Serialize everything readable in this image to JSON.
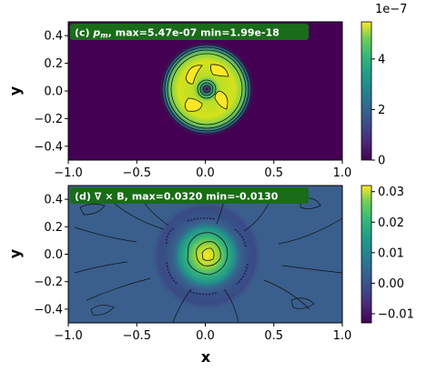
{
  "chart_data": [
    {
      "type": "heatmap",
      "title_prefix": "(c) ",
      "title_symbol": "p",
      "title_symbol_sub": "m",
      "title_rest": ", max=5.47e-07 min=1.99e-18",
      "xlabel": "",
      "ylabel": "y",
      "xlim": [
        -1.0,
        1.0
      ],
      "ylim": [
        -0.5,
        0.5
      ],
      "xticks": [
        "−1.0",
        "−0.5",
        "0.0",
        "0.5",
        "1.0"
      ],
      "xtick_values": [
        -1.0,
        -0.5,
        0.0,
        0.5,
        1.0
      ],
      "yticks": [
        "−0.4",
        "−0.2",
        "0.0",
        "0.2",
        "0.4"
      ],
      "ytick_values": [
        -0.4,
        -0.2,
        0.0,
        0.2,
        0.4
      ],
      "max": 5.47e-07,
      "min": 1.99e-18,
      "colormap": "viridis",
      "colorbar": {
        "range": [
          0,
          5.47e-07
        ],
        "offset_text": "1e−7",
        "ticks": [
          "0",
          "2",
          "4"
        ],
        "tick_values": [
          0,
          2e-07,
          4e-07
        ]
      }
    },
    {
      "type": "heatmap",
      "title": "(d) ∇ × B, max=0.0320 min=-0.0130",
      "xlabel": "x",
      "ylabel": "y",
      "xlim": [
        -1.0,
        1.0
      ],
      "ylim": [
        -0.5,
        0.5
      ],
      "xticks": [
        "−1.0",
        "−0.5",
        "0.0",
        "0.5",
        "1.0"
      ],
      "xtick_values": [
        -1.0,
        -0.5,
        0.0,
        0.5,
        1.0
      ],
      "yticks": [
        "−0.4",
        "−0.2",
        "0.0",
        "0.2",
        "0.4"
      ],
      "ytick_values": [
        -0.4,
        -0.2,
        0.0,
        0.2,
        0.4
      ],
      "max": 0.032,
      "min": -0.013,
      "colormap": "viridis",
      "colorbar": {
        "range": [
          -0.013,
          0.032
        ],
        "ticks": [
          "0.03",
          "0.02",
          "0.01",
          "0.00",
          "−0.01"
        ],
        "tick_values": [
          0.03,
          0.02,
          0.01,
          0.0,
          -0.01
        ]
      }
    }
  ],
  "colors": {
    "title_box_bg": "#1a6b1a",
    "viridis_low": "#440154",
    "viridis_mid": "#21918c",
    "viridis_high": "#fde725",
    "background_panel_d": "#3a5f8d"
  }
}
